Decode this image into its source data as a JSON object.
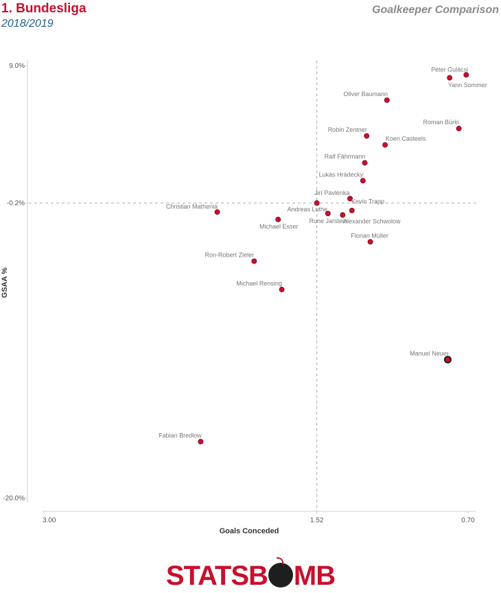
{
  "header": {
    "league": "1. Bundesliga",
    "season": "2018/2019",
    "title": "Goalkeeper Comparison"
  },
  "chart_data": {
    "type": "scatter",
    "title": "Goalkeeper Comparison",
    "xlabel": "Goals Conceded",
    "ylabel": "GSAA %",
    "x_reversed": true,
    "xlim": [
      3.0,
      0.7
    ],
    "ylim": [
      -20.0,
      9.0
    ],
    "x_ticks": [
      {
        "value": 3.0,
        "label": "3.00"
      },
      {
        "value": 1.52,
        "label": "1.52"
      },
      {
        "value": 0.7,
        "label": "0.70"
      }
    ],
    "y_ticks": [
      {
        "value": 9.0,
        "label": "9.0%"
      },
      {
        "value": -0.2,
        "label": "-0.2%"
      },
      {
        "value": -20.0,
        "label": "-20.0%"
      }
    ],
    "reference_lines": {
      "x": 1.52,
      "y": -0.2
    },
    "points": [
      {
        "name": "Péter Gulácsi",
        "x": 0.8,
        "y": 8.2,
        "highlight": false
      },
      {
        "name": "Yann Sommer",
        "x": 0.71,
        "y": 8.4,
        "highlight": false
      },
      {
        "name": "Oliver Baumann",
        "x": 1.14,
        "y": 6.7,
        "highlight": false
      },
      {
        "name": "Roman Bürki",
        "x": 0.75,
        "y": 4.8,
        "highlight": false
      },
      {
        "name": "Robin Zentner",
        "x": 1.25,
        "y": 4.3,
        "highlight": false
      },
      {
        "name": "Koen Casteels",
        "x": 1.15,
        "y": 3.7,
        "highlight": false
      },
      {
        "name": "Ralf Fährmann",
        "x": 1.26,
        "y": 2.5,
        "highlight": false
      },
      {
        "name": "Lukás Hrádecky",
        "x": 1.27,
        "y": 1.3,
        "highlight": false
      },
      {
        "name": "Jirí Pavlenka",
        "x": 1.52,
        "y": -0.2,
        "highlight": false
      },
      {
        "name": "Kevin Trapp",
        "x": 1.34,
        "y": 0.1,
        "highlight": false
      },
      {
        "name": "Alexander Schwolow",
        "x": 1.33,
        "y": -0.7,
        "highlight": false
      },
      {
        "name": "Rune Jarstein",
        "x": 1.38,
        "y": -1.0,
        "highlight": false
      },
      {
        "name": "Andreas Luthe",
        "x": 1.46,
        "y": -0.9,
        "highlight": false
      },
      {
        "name": "Christian Mathenia",
        "x": 2.06,
        "y": -0.8,
        "highlight": false
      },
      {
        "name": "Michael Esser",
        "x": 1.73,
        "y": -1.3,
        "highlight": false
      },
      {
        "name": "Florian Müller",
        "x": 1.23,
        "y": -2.8,
        "highlight": false
      },
      {
        "name": "Ron-Robert Zieler",
        "x": 1.86,
        "y": -4.1,
        "highlight": false
      },
      {
        "name": "Michael Rensing",
        "x": 1.71,
        "y": -6.0,
        "highlight": false
      },
      {
        "name": "Manuel Neuer",
        "x": 0.81,
        "y": -10.7,
        "highlight": true
      },
      {
        "name": "Fabian Bredlow",
        "x": 2.15,
        "y": -16.2,
        "highlight": false
      }
    ]
  },
  "footer": {
    "logo_part1": "STATSB",
    "logo_part2": "MB"
  },
  "colors": {
    "point": "#c8102e",
    "point_stroke": "#7a0010",
    "highlight_ring": "#1a1a1a",
    "league": "#c8102e",
    "season": "#1f5f8b"
  }
}
